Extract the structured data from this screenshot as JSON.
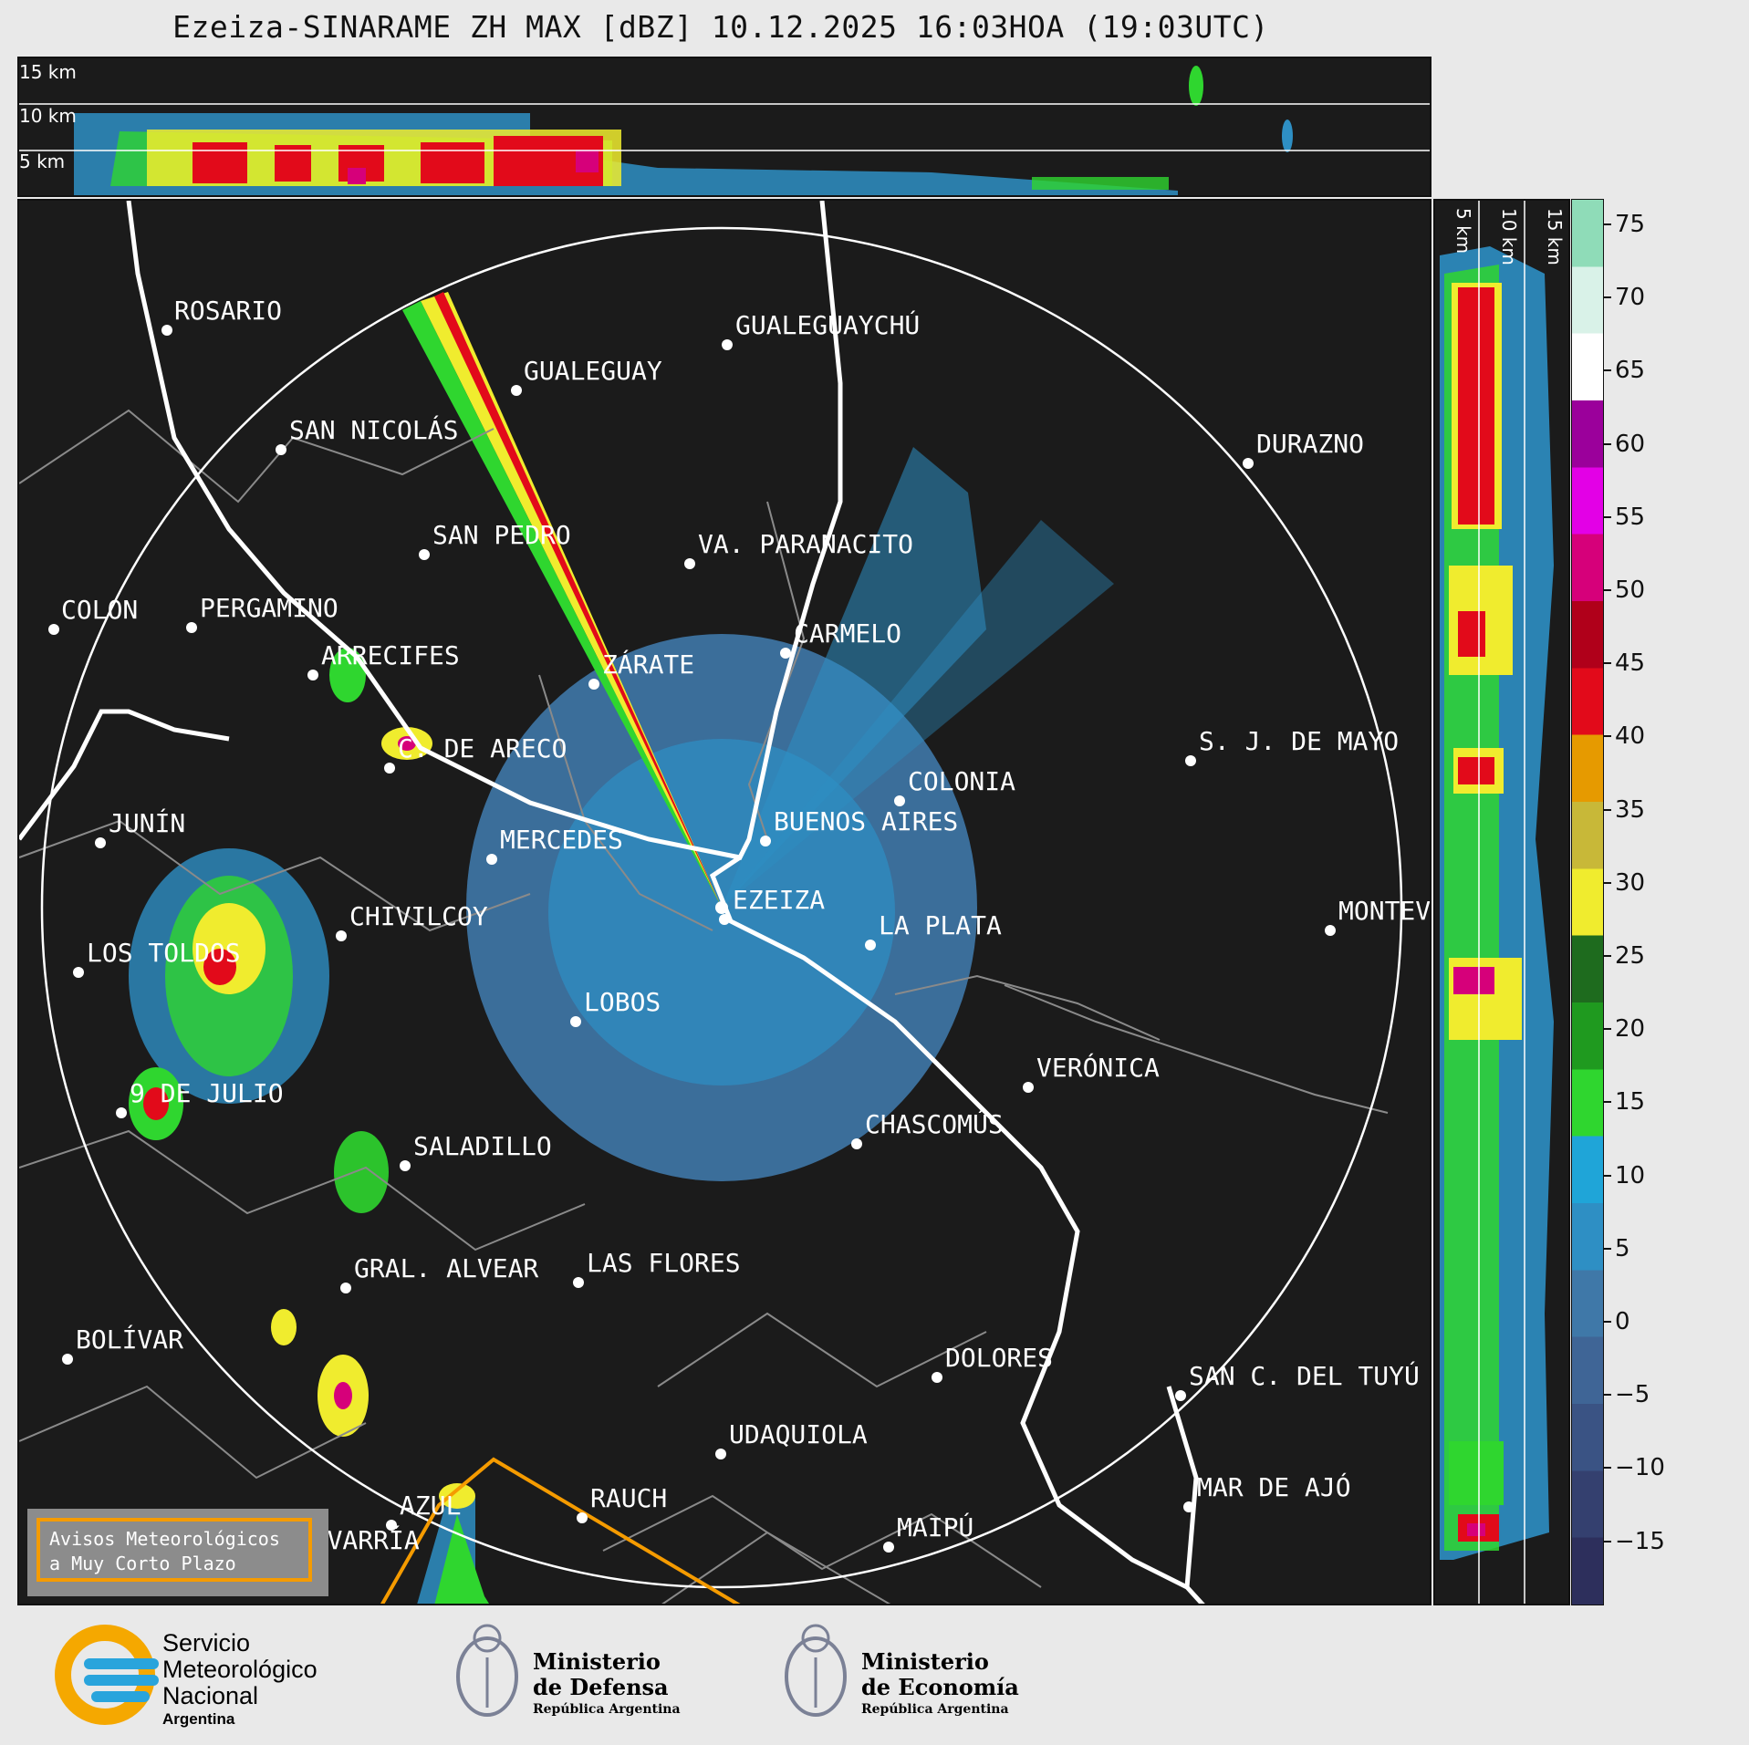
{
  "title": "Ezeiza-SINARAME ZH MAX [dBZ] 10.12.2025 16:03HOA (19:03UTC)",
  "top_section": {
    "heights": [
      "15 km",
      "10 km",
      "5 km"
    ]
  },
  "side_section": {
    "heights": [
      "5 km",
      "10 km",
      "15 km"
    ]
  },
  "colorbar": {
    "ticks": [
      "75",
      "70",
      "65",
      "60",
      "55",
      "50",
      "45",
      "40",
      "35",
      "30",
      "25",
      "20",
      "15",
      "10",
      "5",
      "0",
      "−5",
      "−10",
      "−15"
    ],
    "colors": [
      "#2d2f5c",
      "#34406f",
      "#3a5384",
      "#3f6596",
      "#3f78a8",
      "#2e8fc4",
      "#1fa5d8",
      "#2fd62f",
      "#1f9a1f",
      "#1e6b1e",
      "#f0ec2e",
      "#c8b838",
      "#e69a00",
      "#e20a1a",
      "#b0001a",
      "#d6007a",
      "#e300e6",
      "#9b009b",
      "#ffffff",
      "#d9f2e8",
      "#8fdcb8"
    ]
  },
  "map": {
    "cities": [
      {
        "name": "ROSARIO"
      },
      {
        "name": "GUALEGUAYCHÚ"
      },
      {
        "name": "GUALEGUAY"
      },
      {
        "name": "SAN NICOLÁS"
      },
      {
        "name": "DURAZNO"
      },
      {
        "name": "SAN PEDRO"
      },
      {
        "name": "VA. PARANACITO"
      },
      {
        "name": "COLON"
      },
      {
        "name": "PERGAMINO"
      },
      {
        "name": "CARMELO"
      },
      {
        "name": "ARRECIFES"
      },
      {
        "name": "ZÁRATE"
      },
      {
        "name": "S. J. DE MAYO"
      },
      {
        "name": "C. DE ARECO"
      },
      {
        "name": "COLONIA"
      },
      {
        "name": "BUENOS AIRES"
      },
      {
        "name": "JUNÍN"
      },
      {
        "name": "MERCEDES"
      },
      {
        "name": "EZEIZA"
      },
      {
        "name": "MONTEV"
      },
      {
        "name": "CHIVILCOY"
      },
      {
        "name": "LA PLATA"
      },
      {
        "name": "LOS TOLDOS"
      },
      {
        "name": "LOBOS"
      },
      {
        "name": "VERÓNICA"
      },
      {
        "name": "9 DE JULIO"
      },
      {
        "name": "CHASCOMÚS"
      },
      {
        "name": "SALADILLO"
      },
      {
        "name": "GRAL. ALVEAR"
      },
      {
        "name": "LAS FLORES"
      },
      {
        "name": "BOLÍVAR"
      },
      {
        "name": "DOLORES"
      },
      {
        "name": "SAN C. DEL TUYÚ"
      },
      {
        "name": "UDAQUIOLA"
      },
      {
        "name": "MAR DE AJÓ"
      },
      {
        "name": "RAUCH"
      },
      {
        "name": "AZUL"
      },
      {
        "name": "OLAVARRÍA"
      },
      {
        "name": "MAIPÚ"
      }
    ],
    "warning_box": {
      "line1": "Avisos Meteorológicos",
      "line2": "a Muy Corto Plazo"
    },
    "warning_color": "#f59b00"
  },
  "footer": {
    "smn": {
      "line1": "Servicio",
      "line2": "Meteorológico",
      "line3": "Nacional",
      "line4": "Argentina"
    },
    "defensa": {
      "line1": "Ministerio",
      "line2": "de Defensa",
      "line3": "República Argentina"
    },
    "economia": {
      "line1": "Ministerio",
      "line2": "de Economía",
      "line3": "República Argentina"
    }
  }
}
